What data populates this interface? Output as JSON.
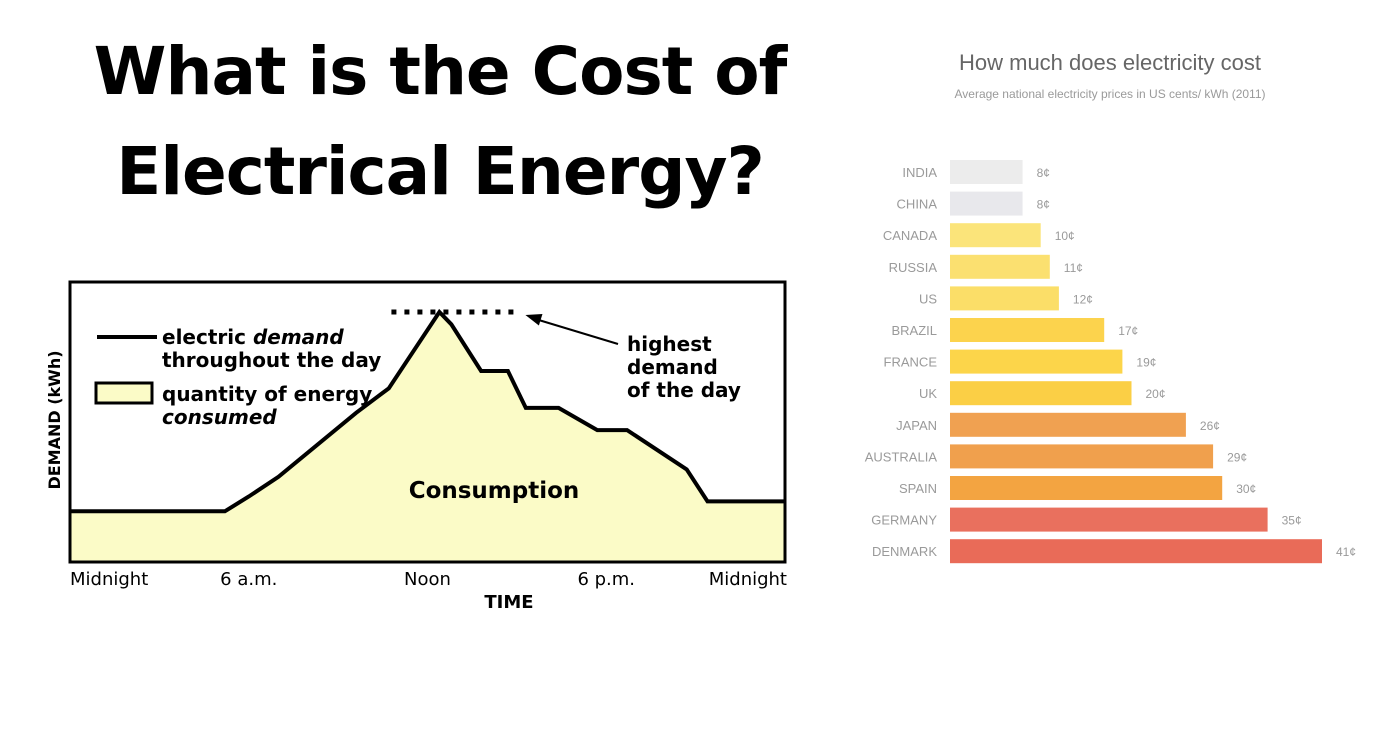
{
  "headline": {
    "line1": "What is the Cost of",
    "line2": "Electrical Energy?"
  },
  "chart_data": [
    {
      "type": "area",
      "title": "",
      "xlabel": "TIME",
      "ylabel": "DEMAND (kWh)",
      "x_ticks": [
        "Midnight",
        "6 a.m.",
        "Noon",
        "6 p.m.",
        "Midnight"
      ],
      "xlim": [
        0,
        24
      ],
      "ylim": [
        0,
        100
      ],
      "series": [
        {
          "name": "electric demand throughout the day",
          "x": [
            0,
            5.2,
            6.0,
            7.0,
            9.6,
            10.7,
            12.4,
            12.8,
            13.8,
            14.7,
            15.3,
            16.4,
            17.7,
            18.7,
            20.7,
            21.4,
            24
          ],
          "values": [
            19,
            19,
            25,
            33,
            59,
            69,
            100,
            95,
            76,
            76,
            61,
            61,
            52,
            52,
            36,
            23,
            23
          ]
        }
      ],
      "legend": [
        {
          "symbol": "line",
          "text_plain": "electric ",
          "text_em": "demand",
          "text_line2": "throughout the day"
        },
        {
          "symbol": "box",
          "text_plain": "quantity of energy",
          "text_em": "consumed"
        }
      ],
      "area_label": "Consumption",
      "peak_annotation": [
        "highest",
        "demand",
        "of the day"
      ],
      "colors": {
        "fill": "#fbfbc7",
        "line": "#000000"
      }
    },
    {
      "type": "bar",
      "orientation": "horizontal",
      "title": "How much does electricity cost",
      "subtitle": "Average national electricity prices in US cents/ kWh (2011)",
      "xlim": [
        0,
        41
      ],
      "categories": [
        "INDIA",
        "CHINA",
        "CANADA",
        "RUSSIA",
        "US",
        "BRAZIL",
        "FRANCE",
        "UK",
        "JAPAN",
        "AUSTRALIA",
        "SPAIN",
        "GERMANY",
        "DENMARK"
      ],
      "values": [
        8,
        8,
        10,
        11,
        12,
        17,
        19,
        20,
        26,
        29,
        30,
        35,
        41
      ],
      "value_labels": [
        "8¢",
        "8¢",
        "10¢",
        "11¢",
        "12¢",
        "17¢",
        "19¢",
        "20¢",
        "26¢",
        "29¢",
        "30¢",
        "35¢",
        "41¢"
      ],
      "bar_colors": [
        "#ececec",
        "#e8e8ec",
        "#fbe47a",
        "#fbe070",
        "#fbde68",
        "#fcd34d",
        "#fcd54a",
        "#fbcf45",
        "#f0a151",
        "#f0a04d",
        "#f3a441",
        "#e9705e",
        "#e96b58"
      ],
      "colors": {
        "label": "#9a9a9a",
        "title": "#666666"
      }
    }
  ]
}
